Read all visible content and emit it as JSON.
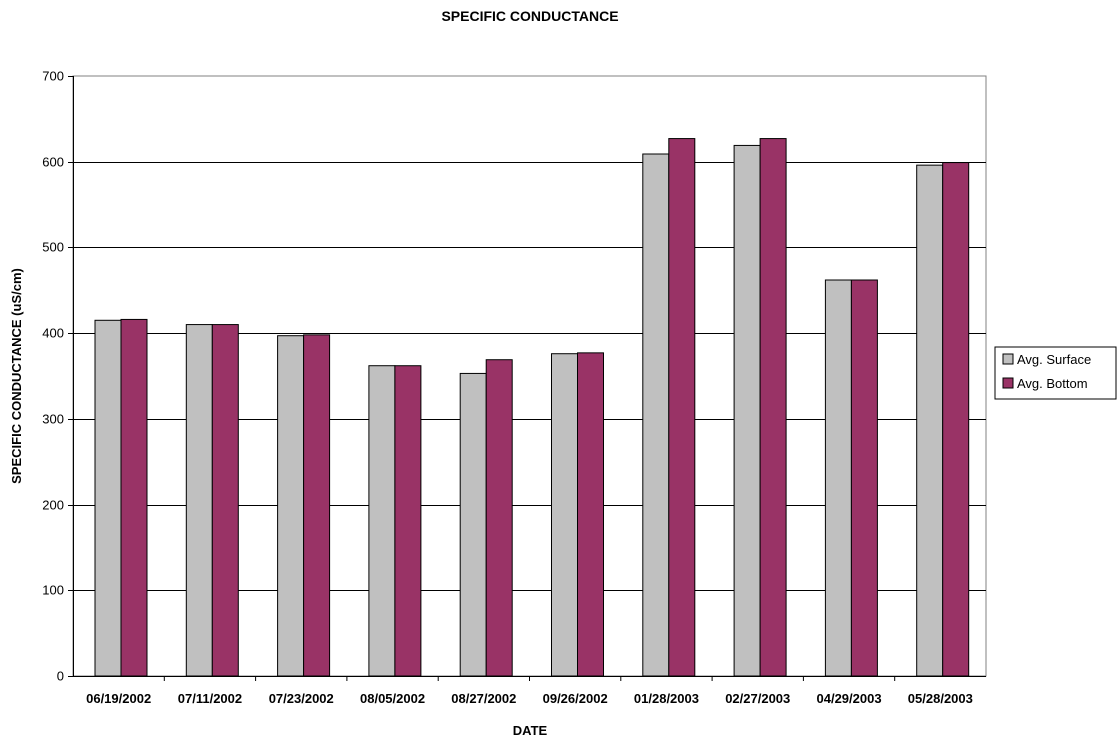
{
  "chart_data": {
    "type": "bar",
    "title": "SPECIFIC CONDUCTANCE",
    "xlabel": "DATE",
    "ylabel": "SPECIFIC CONDUCTANCE (uS/cm)",
    "ylim": [
      0,
      700
    ],
    "yticks": [
      0,
      100,
      200,
      300,
      400,
      500,
      600,
      700
    ],
    "grid": true,
    "legend_position": "right",
    "categories": [
      "06/19/2002",
      "07/11/2002",
      "07/23/2002",
      "08/05/2002",
      "08/27/2002",
      "09/26/2002",
      "01/28/2003",
      "02/27/2003",
      "04/29/2003",
      "05/28/2003"
    ],
    "series": [
      {
        "name": "Avg. Surface",
        "color": "#c0c0c0",
        "values": [
          415,
          410,
          397,
          362,
          353,
          376,
          609,
          619,
          462,
          596
        ]
      },
      {
        "name": "Avg. Bottom",
        "color": "#993366",
        "values": [
          416,
          410,
          398,
          362,
          369,
          377,
          627,
          627,
          462,
          599
        ]
      }
    ]
  }
}
